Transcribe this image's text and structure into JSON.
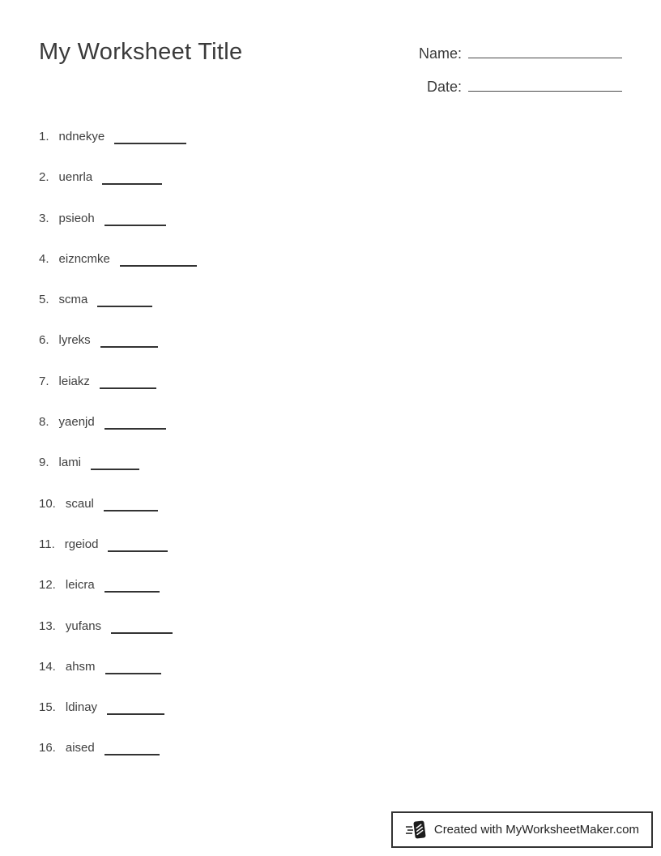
{
  "page": {
    "title": "My Worksheet Title",
    "name_label": "Name:",
    "date_label": "Date:"
  },
  "items": [
    {
      "number": "1.",
      "word": "ndnekye"
    },
    {
      "number": "2.",
      "word": "uenrla"
    },
    {
      "number": "3.",
      "word": "psieoh"
    },
    {
      "number": "4.",
      "word": "eizncmke"
    },
    {
      "number": "5.",
      "word": "scma"
    },
    {
      "number": "6.",
      "word": "lyreks"
    },
    {
      "number": "7.",
      "word": "leiakz"
    },
    {
      "number": "8.",
      "word": "yaenjd"
    },
    {
      "number": "9.",
      "word": "lami"
    },
    {
      "number": "10.",
      "word": "scaul"
    },
    {
      "number": "11.",
      "word": "rgeiod"
    },
    {
      "number": "12.",
      "word": "leicra"
    },
    {
      "number": "13.",
      "word": "yufans"
    },
    {
      "number": "14.",
      "word": "ahsm"
    },
    {
      "number": "15.",
      "word": "ldinay"
    },
    {
      "number": "16.",
      "word": "aised"
    }
  ],
  "footer": {
    "text": "Created with MyWorksheetMaker.com",
    "icon": "flying-document-icon"
  },
  "colors": {
    "text": "#3b3b3b",
    "blank_line": "#333333",
    "field_line": "#4a4a4a",
    "footer_border": "#333333"
  }
}
